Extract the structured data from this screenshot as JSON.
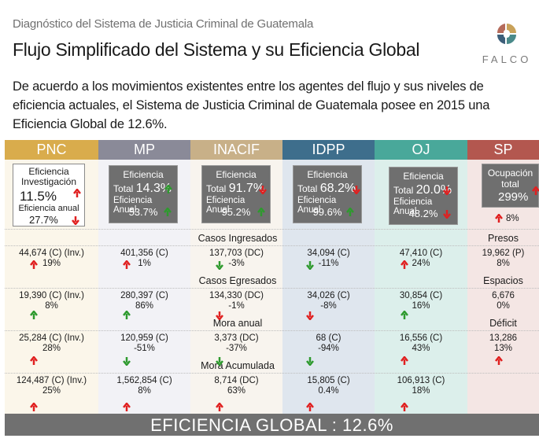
{
  "header": {
    "subtitle": "Diagnóstico del Sistema de Justicia Criminal de Guatemala",
    "title": "Flujo Simplificado del Sistema y su Eficiencia Global",
    "logo_text": "FALCO",
    "paragraph": "De acuerdo a los movimientos existentes entre los agentes del flujo y sus niveles de eficiencia actuales, el Sistema de Justicia Criminal de Guatemala posee en 2015 una Eficiencia Global de 12.6%."
  },
  "colors": {
    "pnc": "#d9ac4c",
    "mp": "#8a8a98",
    "inacif": "#c8b088",
    "idpp": "#3e6e8c",
    "oj": "#49a89a",
    "sp": "#b3574f",
    "arrow_up_red": "#e02020",
    "arrow_down_red": "#e02020",
    "arrow_up_green": "#2e9a2e",
    "arrow_down_green": "#2e9a2e"
  },
  "columns": [
    {
      "key": "pnc",
      "label": "PNC"
    },
    {
      "key": "mp",
      "label": "MP"
    },
    {
      "key": "inacif",
      "label": "INACIF"
    },
    {
      "key": "idpp",
      "label": "IDPP"
    },
    {
      "key": "oj",
      "label": "OJ"
    },
    {
      "key": "sp",
      "label": "SP"
    }
  ],
  "efficiency": {
    "pnc": {
      "line1": "Eficiencia",
      "line2": "Investigación",
      "value": "11.5%",
      "label_annual": "Eficiencia anual",
      "annual": "27.7%"
    },
    "mp": {
      "line1": "Eficiencia",
      "total_label": "Total",
      "total": "14.3%",
      "label_annual": "Eficiencia Anual",
      "annual": "53.7%"
    },
    "inacif": {
      "line1": "Eficiencia",
      "total_label": "Total",
      "total": "91.7%",
      "label_annual": "Eficiencia Anual",
      "annual": "95.2%"
    },
    "idpp": {
      "line1": "Eficiencia",
      "total_label": "Total",
      "total": "68.2%",
      "label_annual": "Eficiencia Anual",
      "annual": "99.6%"
    },
    "oj": {
      "line1": "Eficiencia",
      "total_label": "Total",
      "total": "20.0%",
      "label_annual": "Eficiencia Anual",
      "annual": "48.2%"
    },
    "sp": {
      "line1": "Ocupación",
      "line2": "total",
      "value": "299%",
      "sub": "8%"
    }
  },
  "sections": {
    "ingresados": "Casos Ingresados",
    "egresados": "Casos Egresados",
    "mora": "Mora anual",
    "mora_acum": "Mora Acumulada",
    "presos": "Presos",
    "espacios": "Espacios",
    "deficit": "Déficit"
  },
  "rows": {
    "ingresados": {
      "pnc": {
        "v": "44,674 (C) (Inv.)",
        "p": "19%"
      },
      "mp": {
        "v": "401,356 (C)",
        "p": "1%"
      },
      "inacif": {
        "v": "137,703 (DC)",
        "p": "-3%"
      },
      "idpp": {
        "v": "34,094 (C)",
        "p": "-11%"
      },
      "oj": {
        "v": "47,410 (C)",
        "p": "24%"
      },
      "sp": {
        "v": "19,962 (P)",
        "p": "8%"
      }
    },
    "egresados": {
      "pnc": {
        "v": "19,390 (C) (Inv.)",
        "p": "8%"
      },
      "mp": {
        "v": "280,397 (C)",
        "p": "86%"
      },
      "inacif": {
        "v": "134,330 (DC)",
        "p": "-1%"
      },
      "idpp": {
        "v": "34,026 (C)",
        "p": "-8%"
      },
      "oj": {
        "v": "30,854 (C)",
        "p": "16%"
      },
      "sp": {
        "v": "6,676",
        "p": "0%"
      }
    },
    "mora": {
      "pnc": {
        "v": "25,284 (C) (Inv.)",
        "p": "28%"
      },
      "mp": {
        "v": "120,959 (C)",
        "p": "-51%"
      },
      "inacif": {
        "v": "3,373 (DC)",
        "p": "-37%"
      },
      "idpp": {
        "v": "68 (C)",
        "p": "-94%"
      },
      "oj": {
        "v": "16,556 (C)",
        "p": "43%"
      },
      "sp": {
        "v": "13,286",
        "p": "13%"
      }
    },
    "mora_acum": {
      "pnc": {
        "v": "124,487 (C) (Inv.)",
        "p": "25%"
      },
      "mp": {
        "v": "1,562,854 (C)",
        "p": "8%"
      },
      "inacif": {
        "v": "8,714 (DC)",
        "p": "63%"
      },
      "idpp": {
        "v": "15,805 (C)",
        "p": "0.4%"
      },
      "oj": {
        "v": "106,913 (C)",
        "p": "18%"
      }
    }
  },
  "footer": "EFICIENCIA GLOBAL : 12.6%"
}
